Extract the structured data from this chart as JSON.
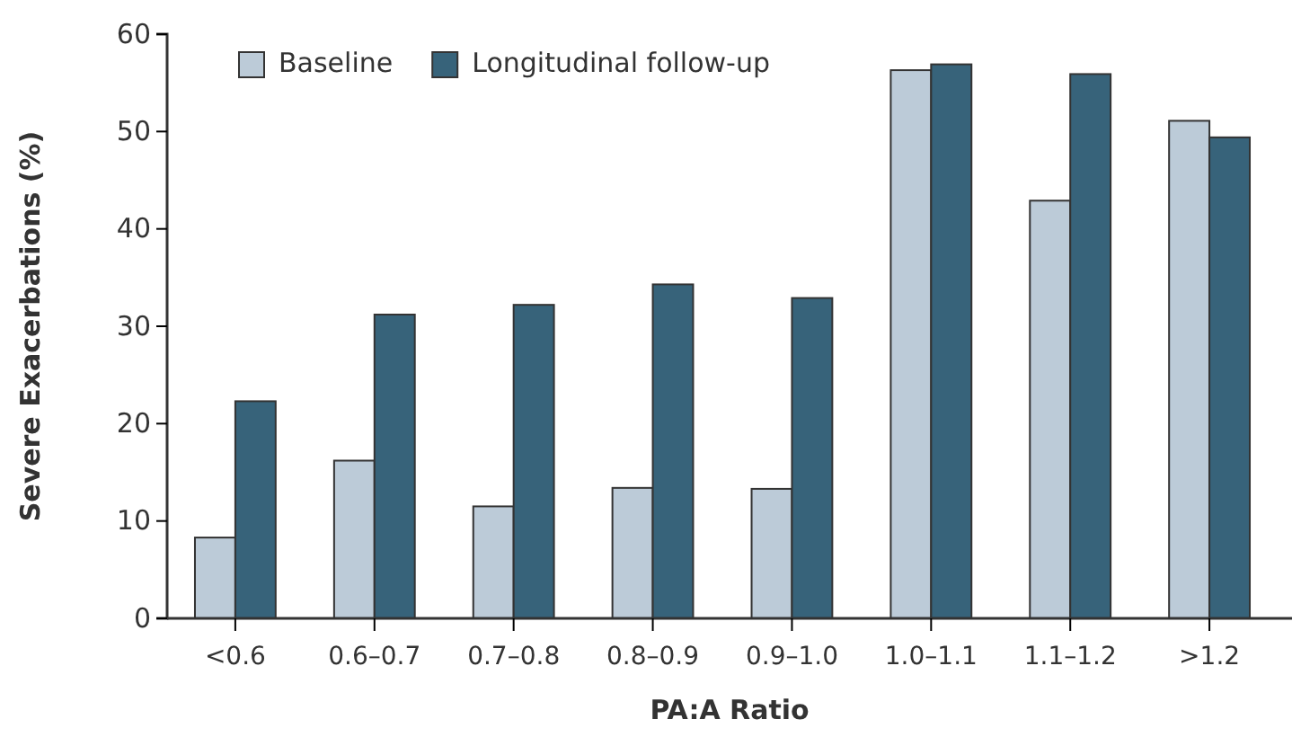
{
  "chart_data": {
    "type": "bar",
    "xlabel": "PA:A Ratio",
    "ylabel": "Severe Exacerbations (%)",
    "categories": [
      "<0.6",
      "0.6–0.7",
      "0.7–0.8",
      "0.8–0.9",
      "0.9–1.0",
      "1.0–1.1",
      "1.1–1.2",
      ">1.2"
    ],
    "series": [
      {
        "name": "Baseline",
        "color": "#bccbd8",
        "values": [
          8.3,
          16.2,
          11.5,
          13.4,
          13.3,
          56.3,
          42.9,
          51.1
        ]
      },
      {
        "name": "Longitudinal follow-up",
        "color": "#37637a",
        "values": [
          22.3,
          31.2,
          32.2,
          34.3,
          32.9,
          56.9,
          55.9,
          49.4
        ]
      }
    ],
    "ylim": [
      0,
      60
    ],
    "yticks": [
      0,
      10,
      20,
      30,
      40,
      50,
      60
    ],
    "grid": false,
    "legend": "top left"
  }
}
